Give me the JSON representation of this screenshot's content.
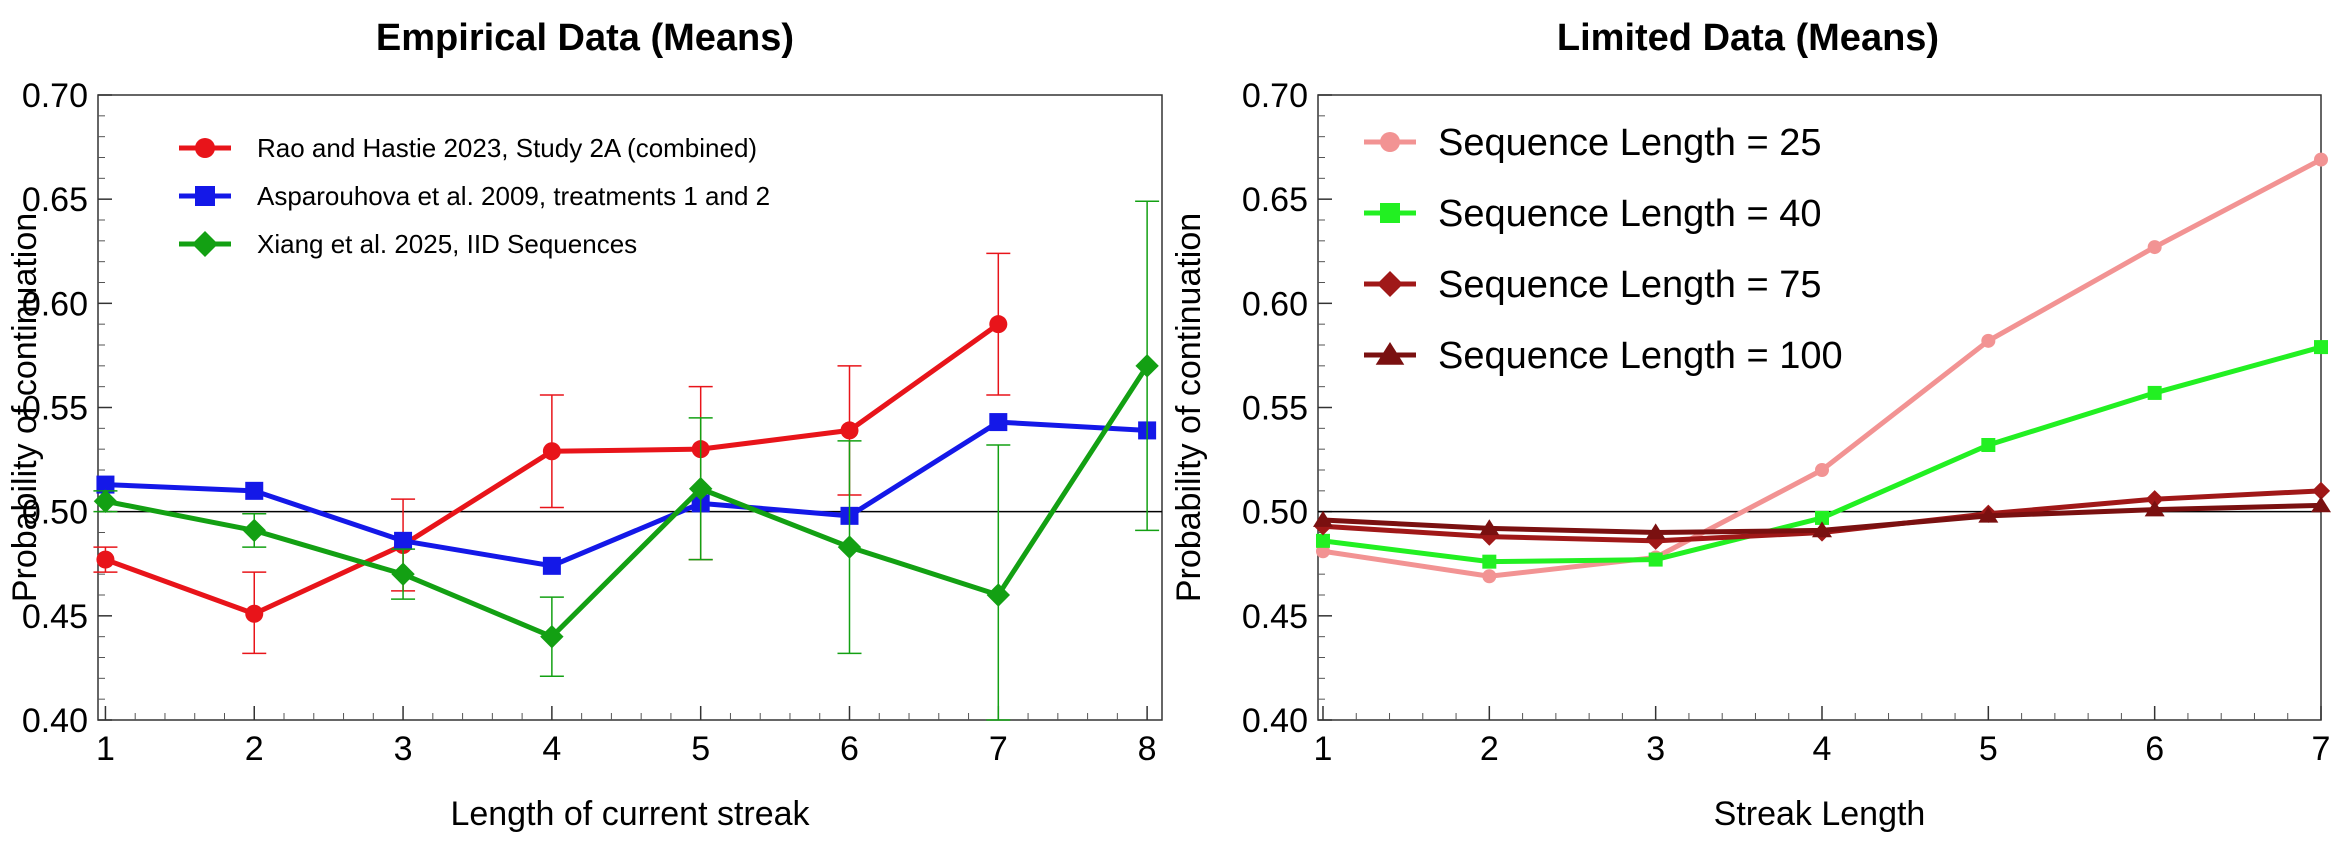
{
  "chart_data": [
    {
      "type": "line",
      "title": "Empirical Data (Means)",
      "xlabel": "Length of current streak",
      "ylabel": "Probability of continuation",
      "xlim": [
        0.95,
        8.1
      ],
      "ylim": [
        0.4,
        0.7
      ],
      "x_ticks": [
        "1",
        "2",
        "3",
        "4",
        "5",
        "6",
        "7",
        "8"
      ],
      "y_ticks": [
        "0.40",
        "0.45",
        "0.50",
        "0.55",
        "0.60",
        "0.65",
        "0.70"
      ],
      "reference_line": 0.5,
      "legend_position": "top-left",
      "series": [
        {
          "name": "Rao and Hastie 2023, Study 2A (combined)",
          "color": "#e8141a",
          "marker": "circle",
          "x": [
            1,
            2,
            3,
            4,
            5,
            6,
            7
          ],
          "values": [
            0.477,
            0.451,
            0.484,
            0.529,
            0.53,
            0.539,
            0.59
          ],
          "err_low": [
            0.471,
            0.432,
            0.462,
            0.502,
            0.477,
            0.508,
            0.556
          ],
          "err_high": [
            0.483,
            0.471,
            0.506,
            0.556,
            0.56,
            0.57,
            0.624
          ]
        },
        {
          "name": "Asparouhova et al. 2009, treatments 1 and 2",
          "color": "#1418e8",
          "marker": "square",
          "x": [
            1,
            2,
            3,
            4,
            5,
            6,
            7,
            8
          ],
          "values": [
            0.513,
            0.51,
            0.486,
            0.474,
            0.504,
            0.498,
            0.543,
            0.539
          ]
        },
        {
          "name": "Xiang et al. 2025, IID Sequences",
          "color": "#13a013",
          "marker": "diamond",
          "x": [
            1,
            2,
            3,
            4,
            5,
            6,
            7,
            8
          ],
          "values": [
            0.505,
            0.491,
            0.47,
            0.44,
            0.511,
            0.483,
            0.46,
            0.57
          ],
          "err_low": [
            0.5,
            0.483,
            0.458,
            0.421,
            0.477,
            0.432,
            0.4,
            0.491
          ],
          "err_high": [
            0.51,
            0.499,
            0.482,
            0.459,
            0.545,
            0.534,
            0.532,
            0.649
          ]
        }
      ]
    },
    {
      "type": "line",
      "title": "Limited Data (Means)",
      "xlabel": "Streak Length",
      "ylabel": "Probability of continuation",
      "xlim": [
        0.97,
        7.0
      ],
      "ylim": [
        0.4,
        0.7
      ],
      "x_ticks": [
        "1",
        "2",
        "3",
        "4",
        "5",
        "6",
        "7"
      ],
      "y_ticks": [
        "0.40",
        "0.45",
        "0.50",
        "0.55",
        "0.60",
        "0.65",
        "0.70"
      ],
      "reference_line": 0.5,
      "legend_position": "top-left",
      "series": [
        {
          "name": "Sequence Length = 25",
          "color": "#f29393",
          "marker": "circle",
          "x": [
            1,
            2,
            3,
            4,
            5,
            6,
            7
          ],
          "values": [
            0.481,
            0.469,
            0.478,
            0.52,
            0.582,
            0.627,
            0.669
          ]
        },
        {
          "name": "Sequence Length = 40",
          "color": "#22f022",
          "marker": "square",
          "x": [
            1,
            2,
            3,
            4,
            5,
            6,
            7
          ],
          "values": [
            0.486,
            0.476,
            0.477,
            0.497,
            0.532,
            0.557,
            0.579
          ]
        },
        {
          "name": "Sequence Length = 75",
          "color": "#a01818",
          "marker": "diamond",
          "x": [
            1,
            2,
            3,
            4,
            5,
            6,
            7
          ],
          "values": [
            0.493,
            0.488,
            0.486,
            0.49,
            0.499,
            0.506,
            0.51
          ]
        },
        {
          "name": "Sequence Length = 100",
          "color": "#7a1010",
          "marker": "triangle",
          "x": [
            1,
            2,
            3,
            4,
            5,
            6,
            7
          ],
          "values": [
            0.496,
            0.492,
            0.49,
            0.491,
            0.498,
            0.501,
            0.503
          ]
        }
      ]
    }
  ]
}
